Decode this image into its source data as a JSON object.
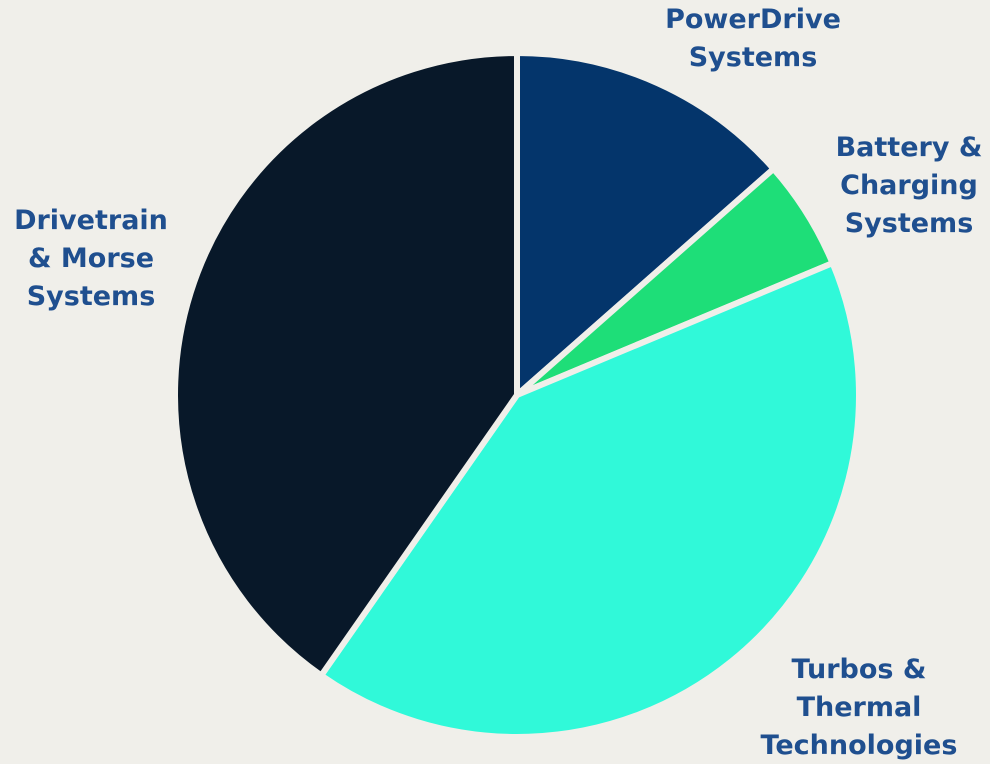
{
  "chart_data": {
    "type": "pie",
    "title": "",
    "start_angle": "top, clockwise",
    "slices": [
      {
        "label": "PowerDrive Systems",
        "label_lines": [
          "PowerDrive",
          "Systems"
        ],
        "value": 13.5,
        "color": "#04356b",
        "label_anchor": "middle"
      },
      {
        "label": "Battery & Charging Systems",
        "label_lines": [
          "Battery &",
          "Charging",
          "Systems"
        ],
        "value": 5.2,
        "color": "#1ede78",
        "label_anchor": "middle"
      },
      {
        "label": "Turbos & Thermal Technologies",
        "label_lines": [
          "Turbos &",
          "Thermal",
          "Technologies"
        ],
        "value": 41.0,
        "color": "#30f9d9",
        "label_anchor": "middle"
      },
      {
        "label": "Drivetrain & Morse Systems",
        "label_lines": [
          "Drivetrain",
          "& Morse",
          "Systems"
        ],
        "value": 40.3,
        "color": "#081829",
        "label_anchor": "middle"
      }
    ],
    "label_color": "#1f4f8f",
    "background": "#f0efea"
  }
}
